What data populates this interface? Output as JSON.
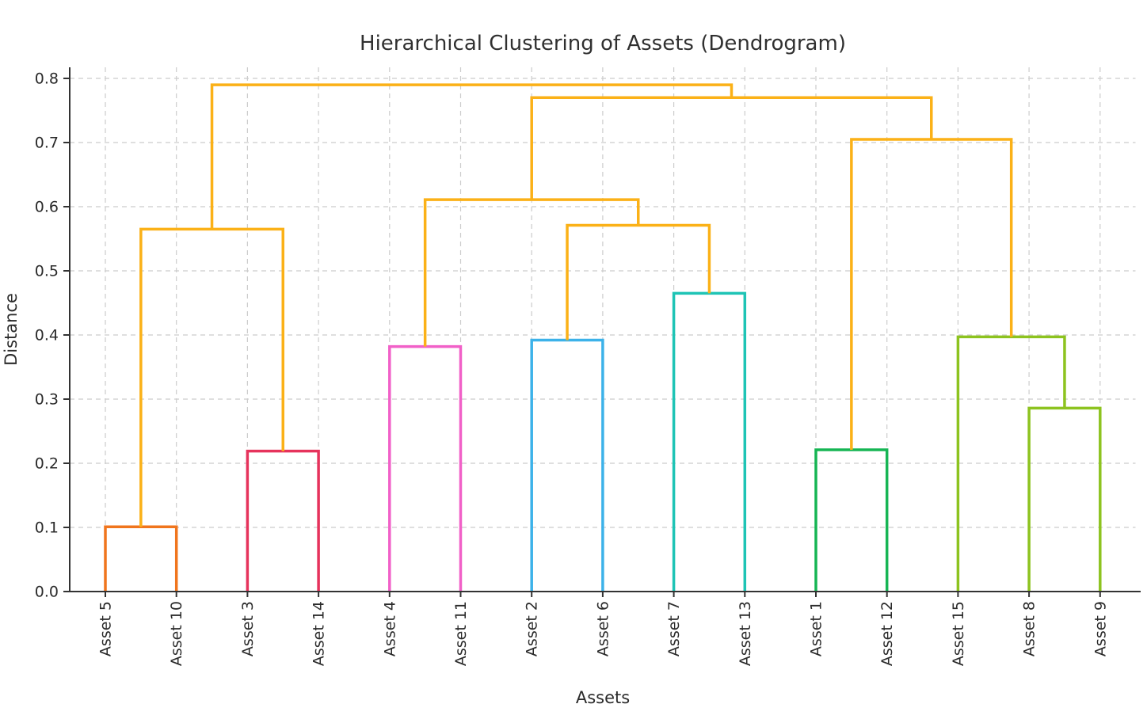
{
  "chart_data": {
    "type": "dendrogram",
    "title": "Hierarchical Clustering of Assets (Dendrogram)",
    "xlabel": "Assets",
    "ylabel": "Distance",
    "ylim": [
      0.0,
      0.817
    ],
    "yticks": [
      0.0,
      0.1,
      0.2,
      0.3,
      0.4,
      0.5,
      0.6,
      0.7,
      0.8
    ],
    "grid": true,
    "grid_style": "dashed",
    "leaves": [
      "Asset 5",
      "Asset 10",
      "Asset 3",
      "Asset 14",
      "Asset 4",
      "Asset 11",
      "Asset 2",
      "Asset 6",
      "Asset 7",
      "Asset 13",
      "Asset 1",
      "Asset 12",
      "Asset 15",
      "Asset 8",
      "Asset 9"
    ],
    "colors": {
      "above_threshold_link": "#FBB117",
      "cluster_orange": "#F0751D",
      "cluster_crimson": "#E6335C",
      "cluster_pink": "#F160C8",
      "cluster_skyblue": "#3CB2E9",
      "cluster_teal": "#1EC4B5",
      "cluster_green": "#16B554",
      "cluster_olive": "#8DC31F",
      "grid": "#cccccc",
      "spine": "#333333",
      "text": "#2b2b2b"
    },
    "links": [
      {
        "a": "L0",
        "b": "L1",
        "h": 0.101,
        "color": "#F0751D",
        "desc": "Asset 5 + Asset 10"
      },
      {
        "a": "L2",
        "b": "L3",
        "h": 0.219,
        "color": "#E6335C",
        "desc": "Asset 3 + Asset 14"
      },
      {
        "a": "C0",
        "b": "C1",
        "h": 0.565,
        "color": "#FBB117",
        "desc": "(5,10) + (3,14)"
      },
      {
        "a": "L4",
        "b": "L5",
        "h": 0.382,
        "color": "#F160C8",
        "desc": "Asset 4 + Asset 11"
      },
      {
        "a": "L6",
        "b": "L7",
        "h": 0.392,
        "color": "#3CB2E9",
        "desc": "Asset 2 + Asset 6"
      },
      {
        "a": "L8",
        "b": "L9",
        "h": 0.465,
        "color": "#1EC4B5",
        "desc": "Asset 7 + Asset 13"
      },
      {
        "a": "C4",
        "b": "C5",
        "h": 0.571,
        "color": "#FBB117",
        "desc": "(2,6) + (7,13)"
      },
      {
        "a": "C3",
        "b": "C6",
        "h": 0.611,
        "color": "#FBB117",
        "desc": "(4,11) + ((2,6),(7,13))"
      },
      {
        "a": "L10",
        "b": "L11",
        "h": 0.221,
        "color": "#16B554",
        "desc": "Asset 1 + Asset 12"
      },
      {
        "a": "L13",
        "b": "L14",
        "h": 0.286,
        "color": "#8DC31F",
        "desc": "Asset 8 + Asset 9"
      },
      {
        "a": "L12",
        "b": "C9",
        "h": 0.397,
        "color": "#8DC31F",
        "desc": "Asset 15 + (8,9)"
      },
      {
        "a": "C8",
        "b": "C10",
        "h": 0.705,
        "color": "#FBB117",
        "desc": "(1,12) + (15,(8,9))"
      },
      {
        "a": "C7",
        "b": "C11",
        "h": 0.77,
        "color": "#FBB117",
        "desc": "middle + right groups"
      },
      {
        "a": "C2",
        "b": "C12",
        "h": 0.79,
        "color": "#FBB117",
        "desc": "root"
      }
    ]
  }
}
